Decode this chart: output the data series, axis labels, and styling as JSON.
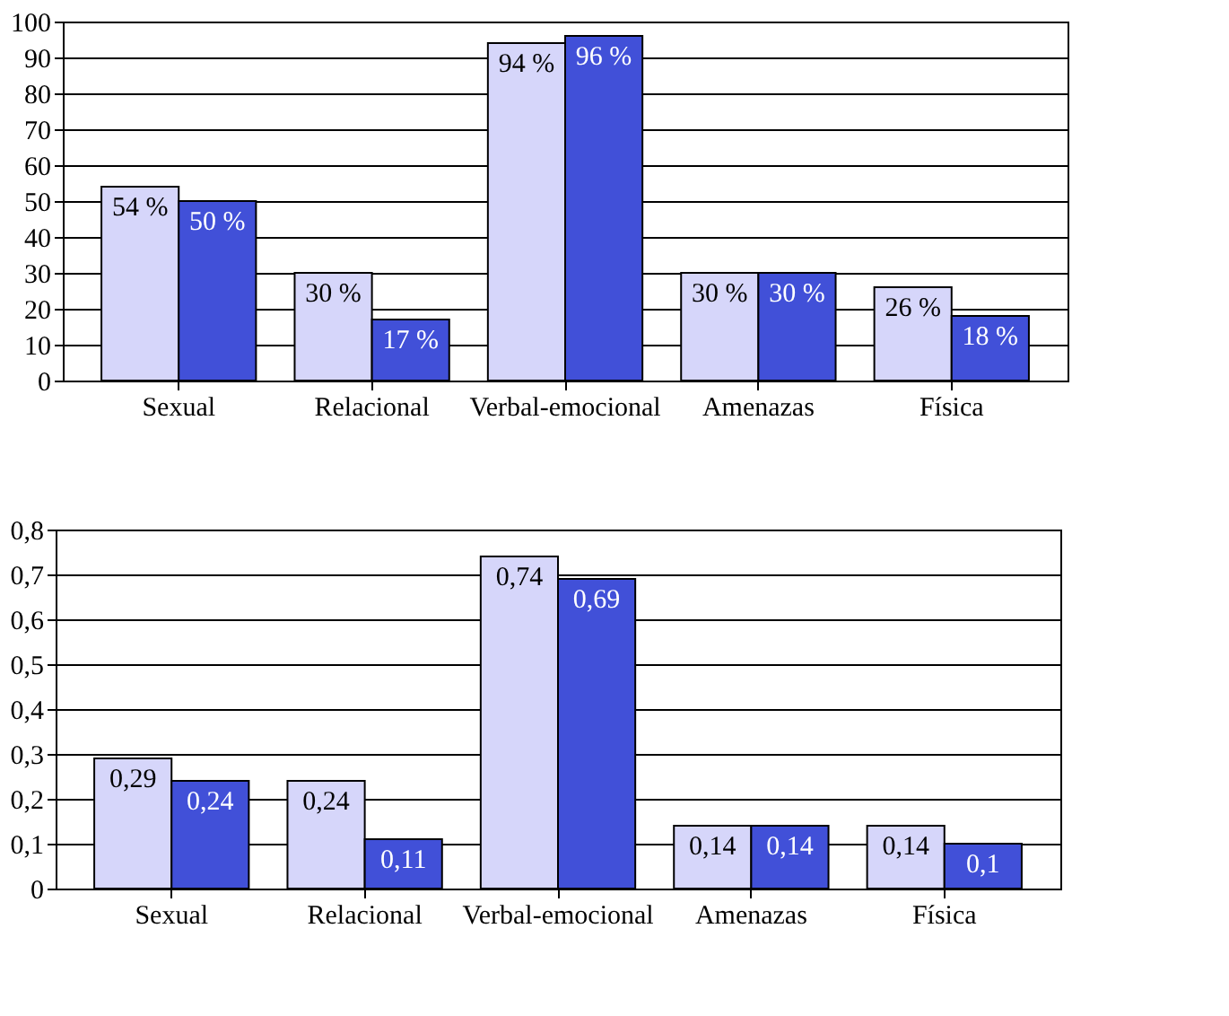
{
  "chart_data": [
    {
      "type": "bar",
      "categories": [
        "Sexual",
        "Relacional",
        "Verbal-emocional",
        "Amenazas",
        "Física"
      ],
      "series": [
        {
          "color": "#d6d6fa",
          "values": [
            54,
            30,
            94,
            30,
            26
          ],
          "value_labels": [
            "54 %",
            "30 %",
            "94 %",
            "30 %",
            "26 %"
          ]
        },
        {
          "color": "#4150d8",
          "values": [
            50,
            17,
            96,
            30,
            18
          ],
          "value_labels": [
            "50 %",
            "17 %",
            "96 %",
            "30 %",
            "18 %"
          ]
        }
      ],
      "ylim": [
        0,
        100
      ],
      "yticks": [
        0,
        10,
        20,
        30,
        40,
        50,
        60,
        70,
        80,
        90,
        100
      ],
      "grid": "y",
      "legend": false
    },
    {
      "type": "bar",
      "categories": [
        "Sexual",
        "Relacional",
        "Verbal-emocional",
        "Amenazas",
        "Física"
      ],
      "series": [
        {
          "color": "#d6d6fa",
          "values": [
            0.29,
            0.24,
            0.74,
            0.14,
            0.14
          ],
          "value_labels": [
            "0,29",
            "0,24",
            "0,74",
            "0,14",
            "0,14"
          ]
        },
        {
          "color": "#4150d8",
          "values": [
            0.24,
            0.11,
            0.69,
            0.14,
            0.1
          ],
          "value_labels": [
            "0,24",
            "0,11",
            "0,69",
            "0,14",
            "0,1"
          ]
        }
      ],
      "ylim": [
        0,
        0.8
      ],
      "yticks": [
        {
          "value": 0,
          "label": "0"
        },
        {
          "value": 0.1,
          "label": "0,1"
        },
        {
          "value": 0.2,
          "label": "0,2"
        },
        {
          "value": 0.3,
          "label": "0,3"
        },
        {
          "value": 0.4,
          "label": "0,4"
        },
        {
          "value": 0.5,
          "label": "0,5"
        },
        {
          "value": 0.6,
          "label": "0,6"
        },
        {
          "value": 0.7,
          "label": "0,7"
        },
        {
          "value": 0.8,
          "label": "0,8"
        }
      ],
      "grid": "y",
      "legend": false
    }
  ]
}
